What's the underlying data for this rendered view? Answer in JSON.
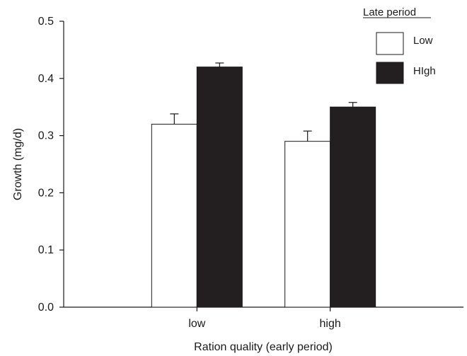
{
  "chart_data": {
    "type": "bar",
    "categories": [
      "low",
      "high"
    ],
    "series": [
      {
        "name": "Low",
        "values": [
          0.32,
          0.29
        ],
        "errors": [
          0.018,
          0.018
        ],
        "color": "#ffffff"
      },
      {
        "name": "HIgh",
        "values": [
          0.42,
          0.35
        ],
        "errors": [
          0.007,
          0.008
        ],
        "color": "#231f20"
      }
    ],
    "title": "",
    "xlabel": "Ration quality (early period)",
    "ylabel": "Growth (mg/d)",
    "ylim": [
      0,
      0.5
    ],
    "yticks": [
      "0.0",
      "0.1",
      "0.2",
      "0.3",
      "0.4",
      "0.5"
    ],
    "legend": {
      "title": "Late period",
      "placement": "top-right"
    },
    "grid": false
  }
}
